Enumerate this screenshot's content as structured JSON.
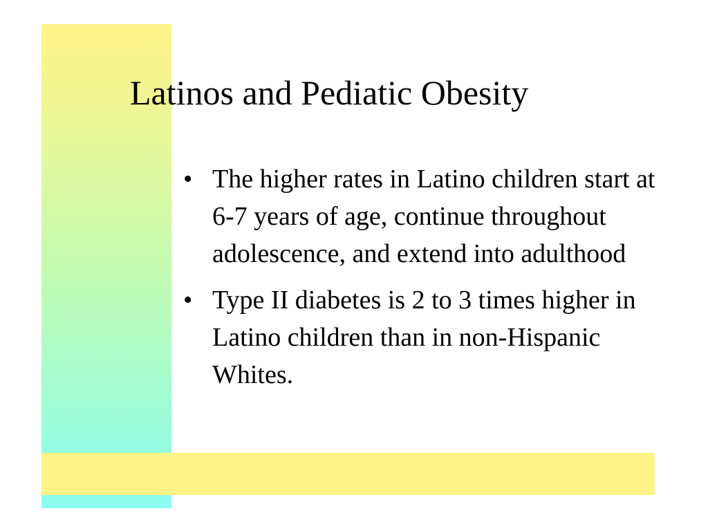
{
  "slide": {
    "title": "Latinos and Pediatic Obesity",
    "bullet_symbol": "•",
    "bullets": [
      {
        "text": "The higher rates in Latino children start at 6-7 years of age, continue throughout adolescence, and extend into adulthood"
      },
      {
        "text": "Type II diabetes is 2 to 3 times higher in Latino children than in non-Hispanic Whites."
      }
    ]
  },
  "colors": {
    "bar_yellow": "#fff387",
    "bar_cyan": "#8afcf0",
    "text": "#000000",
    "background": "#ffffff"
  }
}
